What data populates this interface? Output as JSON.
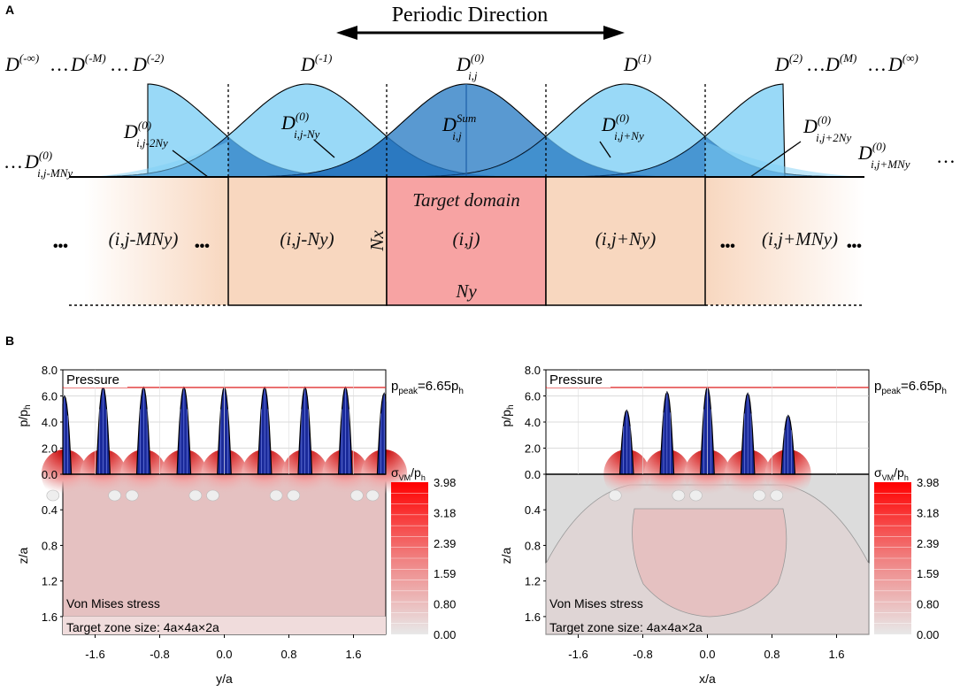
{
  "panelA": {
    "panel_label": "A",
    "title": "Periodic Direction",
    "top_labels": {
      "d_neg_inf": "D",
      "d_neg_inf_sup": "(-∞)",
      "dots1": "…",
      "d_neg_m": "D",
      "d_neg_m_sup": "(-M)",
      "dots2": "…",
      "d_neg_2": "D",
      "d_neg_2_sup": "(-2)",
      "d_neg_1": "D",
      "d_neg_1_sup": "(-1)",
      "d_0": "D",
      "d_0_sup": "(0)",
      "d_0_sub": "i,j",
      "d_1": "D",
      "d_1_sup": "(1)",
      "d_2": "D",
      "d_2_sup": "(2)",
      "dots3": "…",
      "d_m": "D",
      "d_m_sup": "(M)",
      "dots4": "…",
      "d_inf": "D",
      "d_inf_sup": "(∞)"
    },
    "mid_labels": {
      "base": "D",
      "sup0": "(0)",
      "sub_m2ny": "i,j-2Ny",
      "sub_mny": "i,j-Ny",
      "sup_sum": "Sum",
      "sub_sum": "i,j",
      "sub_pny": "i,j+Ny",
      "sub_p2ny": "i,j+2Ny",
      "left_dots": "…",
      "sub_mmny": "i,j-MNy",
      "sub_pmny": "i,j+MNy",
      "right_dots": "…"
    },
    "domains": {
      "target_title": "Target domain",
      "target": "(i,j)",
      "left1": "(i,j-Ny)",
      "right1": "(i,j+Ny)",
      "leftM": "(i,j-MNy)",
      "rightM": "(i,j+MNy)",
      "nx": "Nx",
      "ny": "Ny",
      "dots": "•••"
    }
  },
  "panelB": {
    "panel_label": "B",
    "plots": [
      {
        "pressure_label": "Pressure",
        "peak_label": "p",
        "peak_sub": "peak",
        "peak_eq": "=6.65p",
        "peak_sub2": "h",
        "ylabel_top": "p/p",
        "ylabel_top_sub": "h",
        "ylabel_bottom": "z/a",
        "xlabel": "y/a",
        "vm_label": "Von Mises stress",
        "zone_label": "Target zone size: 4a×4a×2a",
        "cbar_title": "σ",
        "cbar_sub": "VM",
        "cbar_title2": "/p",
        "cbar_sub2": "h",
        "cbar_ticks": [
          "3.98",
          "3.18",
          "2.39",
          "1.59",
          "0.80",
          "0.00"
        ],
        "yticks_top": [
          "8.0",
          "6.0",
          "4.0",
          "2.0",
          "0.0"
        ],
        "yticks_bottom": [
          "0.4",
          "0.8",
          "1.2",
          "1.6"
        ],
        "xticks": [
          "-1.6",
          "-0.8",
          "0.0",
          "0.8",
          "1.6"
        ]
      },
      {
        "pressure_label": "Pressure",
        "peak_label": "p",
        "peak_sub": "peak",
        "peak_eq": "=6.65p",
        "peak_sub2": "h",
        "ylabel_top": "p/p",
        "ylabel_top_sub": "h",
        "ylabel_bottom": "z/a",
        "xlabel": "x/a",
        "vm_label": "Von Mises stress",
        "zone_label": "Target zone size: 4a×4a×2a",
        "cbar_title": "σ",
        "cbar_sub": "VM",
        "cbar_title2": "/p",
        "cbar_sub2": "h",
        "cbar_ticks": [
          "3.98",
          "3.18",
          "2.39",
          "1.59",
          "0.80",
          "0.00"
        ],
        "yticks_top": [
          "8.0",
          "6.0",
          "4.0",
          "2.0",
          "0.0"
        ],
        "yticks_bottom": [
          "0.4",
          "0.8",
          "1.2",
          "1.6"
        ],
        "xticks": [
          "-1.6",
          "-0.8",
          "0.0",
          "0.8",
          "1.6"
        ]
      }
    ]
  },
  "colors": {
    "bell_light": "#7fd0f5",
    "bell_mid": "#2aa0e6",
    "bell_dark": "#1564b4",
    "bell_center": "#2f7fc6",
    "domain_peach": "#f8d7bf",
    "domain_target": "#f7a3a3",
    "stress_base": "#e5c1c1",
    "stress_grey": "#dcdcdc",
    "pressure_line": "#e03030",
    "spike_fill": "#1a2a9a"
  }
}
